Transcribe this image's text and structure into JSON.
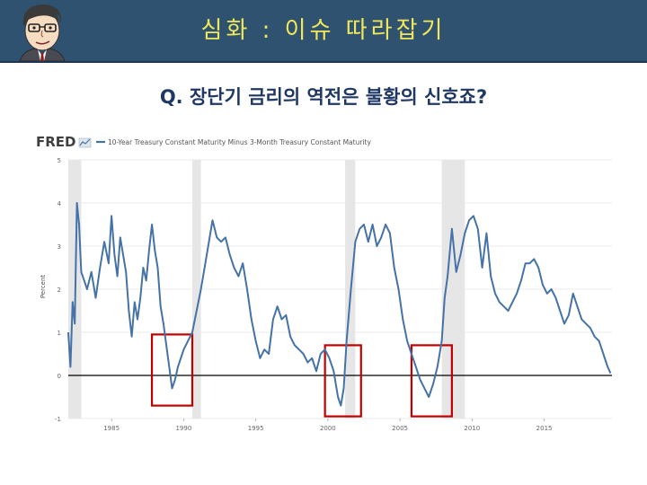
{
  "header": {
    "title": "심화 : 이슈 따라잡기"
  },
  "question": "Q. 장단기 금리의 역전은 불황의 신호죠?",
  "colors": {
    "banner": "#2f5271",
    "title_text": "#f0e75a",
    "question_text": "#1f3864",
    "series_line": "#4572a7",
    "recession_shade": "#e6e6e6",
    "highlight_box": "#c00000"
  },
  "chart_data": {
    "type": "line",
    "logo": "FRED",
    "title": "",
    "legend": "10-Year Treasury Constant Maturity Minus 3-Month Treasury Constant Maturity",
    "ylabel": "Percent",
    "xlabel": "",
    "xlim": [
      1982.0,
      2019.7
    ],
    "ylim": [
      -1,
      5
    ],
    "yticks": [
      -1,
      0,
      1,
      2,
      3,
      4,
      5
    ],
    "xticks": [
      1985,
      1990,
      1995,
      2000,
      2005,
      2010,
      2015
    ],
    "grid": "horizontal",
    "zero_line": true,
    "recessions": [
      [
        1981.5,
        1982.9
      ],
      [
        1990.6,
        1991.2
      ],
      [
        2001.2,
        2001.9
      ],
      [
        2007.9,
        2009.5
      ]
    ],
    "highlights": [
      [
        1987.8,
        1990.6,
        -0.7,
        0.95
      ],
      [
        1999.8,
        2002.3,
        -0.95,
        0.7
      ],
      [
        2005.8,
        2008.6,
        -0.95,
        0.7
      ]
    ],
    "series": [
      {
        "name": "10-Year Treasury Constant Maturity Minus 3-Month Treasury Constant Maturity",
        "x": [
          1982.0,
          1982.15,
          1982.3,
          1982.45,
          1982.6,
          1982.75,
          1982.9,
          1983.1,
          1983.3,
          1983.6,
          1983.9,
          1984.2,
          1984.5,
          1984.8,
          1985.0,
          1985.2,
          1985.4,
          1985.6,
          1985.8,
          1986.0,
          1986.2,
          1986.4,
          1986.6,
          1986.8,
          1987.0,
          1987.2,
          1987.4,
          1987.6,
          1987.8,
          1988.0,
          1988.2,
          1988.4,
          1988.6,
          1988.8,
          1989.0,
          1989.2,
          1989.4,
          1989.6,
          1989.8,
          1990.0,
          1990.3,
          1990.6,
          1990.9,
          1991.2,
          1991.5,
          1991.8,
          1992.0,
          1992.3,
          1992.6,
          1992.9,
          1993.2,
          1993.5,
          1993.8,
          1994.1,
          1994.4,
          1994.7,
          1995.0,
          1995.3,
          1995.6,
          1995.9,
          1996.2,
          1996.5,
          1996.8,
          1997.1,
          1997.4,
          1997.7,
          1998.0,
          1998.3,
          1998.6,
          1998.9,
          1999.2,
          1999.5,
          1999.8,
          2000.1,
          2000.4,
          2000.7,
          2000.9,
          2001.1,
          2001.3,
          2001.6,
          2001.9,
          2002.2,
          2002.5,
          2002.8,
          2003.1,
          2003.4,
          2003.7,
          2004.0,
          2004.3,
          2004.6,
          2004.9,
          2005.2,
          2005.5,
          2005.8,
          2006.1,
          2006.4,
          2006.7,
          2007.0,
          2007.3,
          2007.6,
          2007.9,
          2008.1,
          2008.3,
          2008.6,
          2008.9,
          2009.2,
          2009.5,
          2009.8,
          2010.1,
          2010.4,
          2010.7,
          2011.0,
          2011.3,
          2011.6,
          2011.9,
          2012.2,
          2012.5,
          2012.8,
          2013.1,
          2013.4,
          2013.7,
          2014.0,
          2014.3,
          2014.6,
          2014.9,
          2015.2,
          2015.5,
          2015.8,
          2016.1,
          2016.4,
          2016.7,
          2017.0,
          2017.3,
          2017.6,
          2017.9,
          2018.2,
          2018.5,
          2018.8,
          2019.1,
          2019.4,
          2019.6
        ],
        "y": [
          1.0,
          0.2,
          1.7,
          1.2,
          4.0,
          3.5,
          2.4,
          2.2,
          2.0,
          2.4,
          1.8,
          2.5,
          3.1,
          2.6,
          3.7,
          2.8,
          2.3,
          3.2,
          2.8,
          2.4,
          1.5,
          0.9,
          1.7,
          1.3,
          1.8,
          2.5,
          2.2,
          2.9,
          3.5,
          2.9,
          2.5,
          1.6,
          1.2,
          0.7,
          0.2,
          -0.3,
          -0.1,
          0.2,
          0.4,
          0.6,
          0.8,
          1.0,
          1.5,
          2.0,
          2.6,
          3.2,
          3.6,
          3.2,
          3.1,
          3.2,
          2.8,
          2.5,
          2.3,
          2.6,
          2.0,
          1.3,
          0.8,
          0.4,
          0.6,
          0.5,
          1.3,
          1.6,
          1.3,
          1.4,
          0.9,
          0.7,
          0.6,
          0.5,
          0.3,
          0.4,
          0.1,
          0.5,
          0.6,
          0.4,
          0.1,
          -0.5,
          -0.7,
          -0.3,
          0.8,
          2.0,
          3.1,
          3.4,
          3.5,
          3.1,
          3.5,
          3.0,
          3.2,
          3.5,
          3.3,
          2.5,
          2.0,
          1.3,
          0.8,
          0.5,
          0.2,
          -0.1,
          -0.3,
          -0.5,
          -0.2,
          0.2,
          0.8,
          1.8,
          2.3,
          3.4,
          2.4,
          2.8,
          3.3,
          3.6,
          3.7,
          3.4,
          2.5,
          3.3,
          2.3,
          1.9,
          1.7,
          1.6,
          1.5,
          1.7,
          1.9,
          2.2,
          2.6,
          2.6,
          2.7,
          2.5,
          2.1,
          1.9,
          2.0,
          1.8,
          1.5,
          1.2,
          1.4,
          1.9,
          1.6,
          1.3,
          1.2,
          1.1,
          0.9,
          0.8,
          0.5,
          0.2,
          0.05
        ]
      }
    ],
    "x_hint_unit": "year"
  }
}
